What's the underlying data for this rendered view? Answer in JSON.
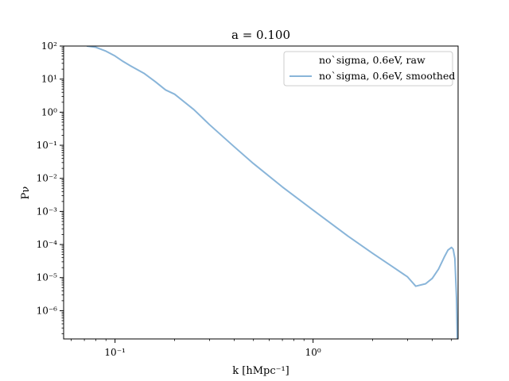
{
  "chart_data": {
    "type": "line",
    "title": "a = 0.100",
    "xlabel": "k [hMpc⁻¹]",
    "ylabel": "Pν",
    "xscale": "log",
    "yscale": "log",
    "xlim": [
      0.055,
      5.4
    ],
    "ylim": [
      1.4e-07,
      100
    ],
    "grid": false,
    "legend_position": "top-right",
    "x_ticks": [
      {
        "value": 0.1,
        "label": "10⁻¹"
      },
      {
        "value": 1,
        "label": "10⁰"
      }
    ],
    "y_ticks": [
      {
        "value": 100,
        "label": "10²"
      },
      {
        "value": 10,
        "label": "10¹"
      },
      {
        "value": 1,
        "label": "10⁰"
      },
      {
        "value": 0.1,
        "label": "10⁻¹"
      },
      {
        "value": 0.01,
        "label": "10⁻²"
      },
      {
        "value": 0.001,
        "label": "10⁻³"
      },
      {
        "value": 0.0001,
        "label": "10⁻⁴"
      },
      {
        "value": 1e-05,
        "label": "10⁻⁵"
      },
      {
        "value": 1e-06,
        "label": "10⁻⁶"
      }
    ],
    "series": [
      {
        "name": "no`sigma, 0.6eV, raw",
        "color": "#ffffff",
        "x": [
          0.072,
          0.08,
          0.09,
          0.1,
          0.11,
          0.12,
          0.14,
          0.16,
          0.18,
          0.2,
          0.25,
          0.3,
          0.4,
          0.5,
          0.7,
          1.0,
          1.5,
          2.0,
          2.5,
          3.0,
          3.3,
          3.7,
          4.0,
          4.3,
          4.6,
          4.8,
          5.0,
          5.1,
          5.2,
          5.3,
          5.35
        ],
        "y": [
          100,
          92,
          70,
          50,
          34,
          25,
          15,
          8.3,
          4.7,
          3.5,
          1.2,
          0.42,
          0.09,
          0.028,
          0.0055,
          0.0011,
          0.00018,
          5.4e-05,
          2.2e-05,
          1.05e-05,
          5.5e-06,
          6.5e-06,
          9.5e-06,
          1.8e-05,
          4.2e-05,
          6.8e-05,
          8.2e-05,
          7.2e-05,
          3.8e-05,
          2.5e-06,
          1.4e-07
        ]
      },
      {
        "name": "no`sigma, 0.6eV, smoothed",
        "color": "#89b5d9",
        "x": [
          0.072,
          0.08,
          0.09,
          0.1,
          0.11,
          0.12,
          0.14,
          0.16,
          0.18,
          0.2,
          0.25,
          0.3,
          0.4,
          0.5,
          0.7,
          1.0,
          1.5,
          2.0,
          2.5,
          3.0,
          3.3,
          3.7,
          4.0,
          4.3,
          4.6,
          4.8,
          5.0,
          5.1,
          5.2,
          5.3,
          5.35
        ],
        "y": [
          100,
          92,
          70,
          50,
          34,
          25,
          15,
          8.3,
          4.7,
          3.5,
          1.2,
          0.42,
          0.09,
          0.028,
          0.0055,
          0.0011,
          0.00018,
          5.4e-05,
          2.2e-05,
          1.05e-05,
          5.5e-06,
          6.5e-06,
          9.5e-06,
          1.8e-05,
          4.2e-05,
          6.8e-05,
          8.2e-05,
          7.2e-05,
          3.8e-05,
          2.5e-06,
          1.4e-07
        ]
      }
    ]
  }
}
